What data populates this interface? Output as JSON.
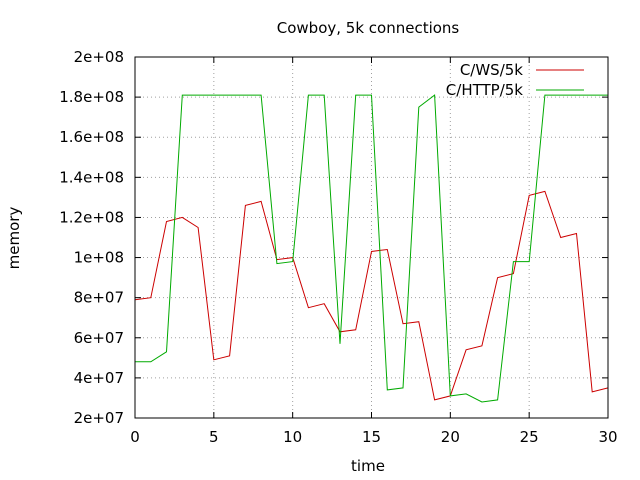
{
  "chart_data": {
    "type": "line",
    "title": "Cowboy, 5k connections",
    "xlabel": "time",
    "ylabel": "memory",
    "xlim": [
      0,
      30
    ],
    "ylim": [
      20000000,
      200000000
    ],
    "xticks": [
      0,
      5,
      10,
      15,
      20,
      25,
      30
    ],
    "xtick_labels": [
      "0",
      "5",
      "10",
      "15",
      "20",
      "25",
      "30"
    ],
    "yticks": [
      20000000,
      40000000,
      60000000,
      80000000,
      100000000,
      120000000,
      140000000,
      160000000,
      180000000,
      200000000
    ],
    "ytick_labels": [
      "2e+07",
      "4e+07",
      "6e+07",
      "8e+07",
      "1e+08",
      "1.2e+08",
      "1.4e+08",
      "1.6e+08",
      "1.8e+08",
      "2e+08"
    ],
    "grid": true,
    "legend_position": "top-right",
    "series": [
      {
        "name": "C/WS/5k",
        "color": "#cc0000",
        "x": [
          0,
          1,
          2,
          3,
          4,
          5,
          6,
          7,
          8,
          9,
          10,
          11,
          12,
          13,
          14,
          15,
          16,
          17,
          18,
          19,
          20,
          21,
          22,
          23,
          24,
          25,
          26,
          27,
          28,
          29,
          30
        ],
        "values": [
          79000000,
          80000000,
          118000000,
          120000000,
          115000000,
          49000000,
          51000000,
          126000000,
          128000000,
          99000000,
          100000000,
          75000000,
          77000000,
          63000000,
          64000000,
          103000000,
          104000000,
          67000000,
          68000000,
          29000000,
          31000000,
          54000000,
          56000000,
          90000000,
          92000000,
          131000000,
          133000000,
          110000000,
          112000000,
          33000000,
          35000000
        ]
      },
      {
        "name": "C/HTTP/5k",
        "color": "#00aa00",
        "x": [
          0,
          1,
          2,
          3,
          4,
          5,
          6,
          7,
          8,
          9,
          10,
          11,
          12,
          13,
          14,
          15,
          16,
          17,
          18,
          19,
          20,
          21,
          22,
          23,
          24,
          25,
          26,
          27,
          28,
          29,
          30
        ],
        "values": [
          48000000,
          48000000,
          53000000,
          181000000,
          181000000,
          181000000,
          181000000,
          181000000,
          181000000,
          97000000,
          98000000,
          181000000,
          181000000,
          57000000,
          181000000,
          181000000,
          34000000,
          35000000,
          175000000,
          181000000,
          31000000,
          32000000,
          28000000,
          29000000,
          98000000,
          98000000,
          181000000,
          181000000,
          181000000,
          181000000,
          181000000
        ]
      }
    ]
  }
}
